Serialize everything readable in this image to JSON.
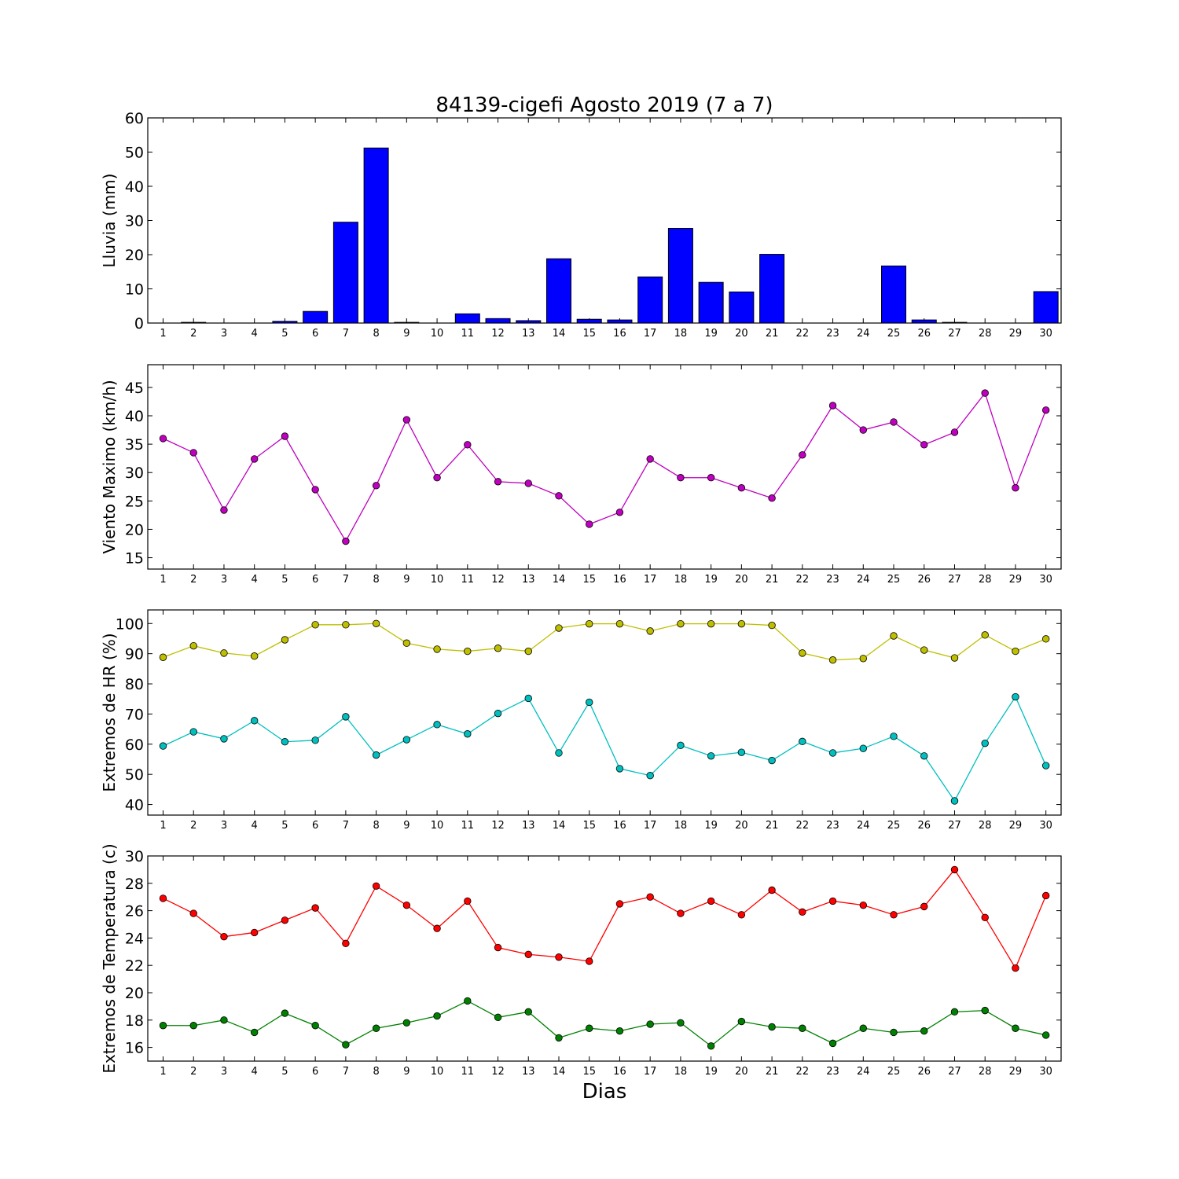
{
  "chart_data": [
    {
      "type": "bar",
      "title": "84139-cigefi Agosto 2019  (7 a 7)",
      "ylabel": "Lluvia (mm)",
      "xlabel": "",
      "categories": [
        "1",
        "2",
        "3",
        "4",
        "5",
        "6",
        "7",
        "8",
        "9",
        "10",
        "11",
        "12",
        "13",
        "14",
        "15",
        "16",
        "17",
        "18",
        "19",
        "20",
        "21",
        "22",
        "23",
        "24",
        "25",
        "26",
        "27",
        "28",
        "29",
        "30"
      ],
      "values": [
        0,
        0.2,
        0,
        0,
        0.5,
        3.4,
        29.5,
        51.2,
        0.2,
        0,
        2.7,
        1.3,
        0.7,
        18.8,
        1.1,
        0.9,
        13.5,
        27.7,
        11.9,
        9.1,
        20.1,
        0,
        0,
        0,
        16.7,
        0.9,
        0.2,
        0,
        0,
        9.2
      ],
      "ylim": [
        0,
        60
      ],
      "yticks": [
        0,
        10,
        20,
        30,
        40,
        50,
        60
      ],
      "color": "#0000ff"
    },
    {
      "type": "line",
      "ylabel": "Viento Maximo (km/h)",
      "categories": [
        "1",
        "2",
        "3",
        "4",
        "5",
        "6",
        "7",
        "8",
        "9",
        "10",
        "11",
        "12",
        "13",
        "14",
        "15",
        "16",
        "17",
        "18",
        "19",
        "20",
        "21",
        "22",
        "23",
        "24",
        "25",
        "26",
        "27",
        "28",
        "29",
        "30"
      ],
      "series": [
        {
          "values": [
            36.0,
            33.5,
            23.4,
            32.4,
            36.4,
            27.0,
            17.9,
            27.7,
            39.3,
            29.1,
            34.9,
            28.4,
            28.1,
            25.9,
            20.9,
            23.0,
            32.4,
            29.1,
            29.1,
            27.3,
            25.5,
            33.1,
            41.8,
            37.5,
            38.9,
            34.9,
            37.1,
            44.0,
            27.3,
            41.0
          ],
          "color": "#bf00bf"
        }
      ],
      "ylim": [
        13,
        49
      ],
      "yticks": [
        15,
        20,
        25,
        30,
        35,
        40,
        45
      ]
    },
    {
      "type": "line",
      "ylabel": "Extremos de HR (%)",
      "categories": [
        "1",
        "2",
        "3",
        "4",
        "5",
        "6",
        "7",
        "8",
        "9",
        "10",
        "11",
        "12",
        "13",
        "14",
        "15",
        "16",
        "17",
        "18",
        "19",
        "20",
        "21",
        "22",
        "23",
        "24",
        "25",
        "26",
        "27",
        "28",
        "29",
        "30"
      ],
      "series": [
        {
          "values": [
            88.8,
            92.6,
            90.2,
            89.2,
            94.6,
            99.6,
            99.6,
            100.0,
            93.5,
            91.5,
            90.8,
            91.8,
            90.8,
            98.5,
            99.9,
            99.9,
            97.5,
            99.9,
            99.9,
            99.9,
            99.4,
            90.2,
            87.9,
            88.4,
            95.9,
            91.2,
            88.6,
            96.2,
            90.8,
            94.9
          ],
          "color": "#bfbf00"
        },
        {
          "values": [
            59.4,
            64.1,
            61.8,
            67.8,
            60.8,
            61.3,
            69.1,
            56.4,
            61.5,
            66.5,
            63.4,
            70.2,
            75.2,
            57.1,
            73.9,
            51.9,
            49.6,
            59.6,
            56.1,
            57.3,
            54.6,
            60.9,
            57.1,
            58.6,
            62.6,
            56.1,
            41.2,
            60.3,
            75.7,
            52.9
          ],
          "color": "#00bfbf"
        }
      ],
      "ylim": [
        36.5,
        104.5
      ],
      "yticks": [
        40,
        50,
        60,
        70,
        80,
        90,
        100
      ]
    },
    {
      "type": "line",
      "ylabel": "Extremos de Temperatura (c)",
      "xlabel": "Dias",
      "categories": [
        "1",
        "2",
        "3",
        "4",
        "5",
        "6",
        "7",
        "8",
        "9",
        "10",
        "11",
        "12",
        "13",
        "14",
        "15",
        "16",
        "17",
        "18",
        "19",
        "20",
        "21",
        "22",
        "23",
        "24",
        "25",
        "26",
        "27",
        "28",
        "29",
        "30"
      ],
      "series": [
        {
          "values": [
            26.9,
            25.8,
            24.1,
            24.4,
            25.3,
            26.2,
            23.6,
            27.8,
            26.4,
            24.7,
            26.7,
            23.3,
            22.8,
            22.6,
            22.3,
            26.5,
            27.0,
            25.8,
            26.7,
            25.7,
            27.5,
            25.9,
            26.7,
            26.4,
            25.7,
            26.3,
            29.0,
            25.5,
            21.8,
            27.1
          ],
          "color": "#ff0000"
        },
        {
          "values": [
            17.6,
            17.6,
            18.0,
            17.1,
            18.5,
            17.6,
            16.2,
            17.4,
            17.8,
            18.3,
            19.4,
            18.2,
            18.6,
            16.7,
            17.4,
            17.2,
            17.7,
            17.8,
            16.1,
            17.9,
            17.5,
            17.4,
            16.3,
            17.4,
            17.1,
            17.2,
            18.6,
            18.7,
            17.4,
            16.9
          ],
          "color": "#008000"
        }
      ],
      "ylim": [
        15,
        30
      ],
      "yticks": [
        16,
        18,
        20,
        22,
        24,
        26,
        28,
        30
      ]
    }
  ]
}
